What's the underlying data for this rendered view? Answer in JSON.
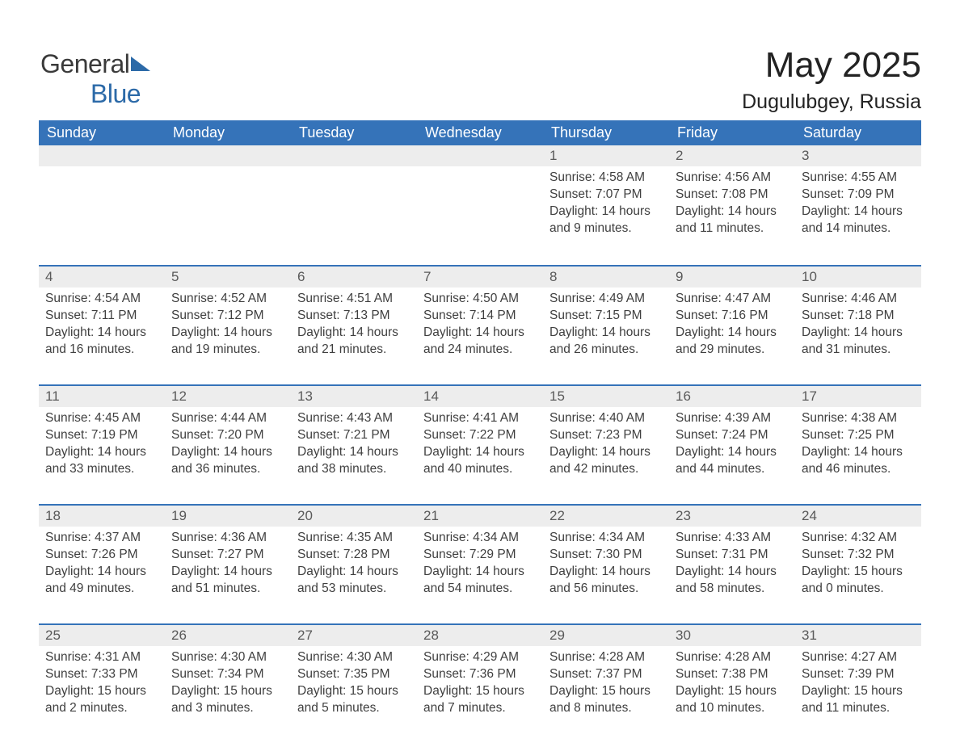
{
  "logo": {
    "text_general": "General",
    "text_blue": "Blue",
    "icon_color": "#2c6aa8"
  },
  "header": {
    "month_title": "May 2025",
    "location": "Dugulubgey, Russia"
  },
  "colors": {
    "header_bg": "#3573b9",
    "header_text": "#ffffff",
    "daynum_bg": "#ededed",
    "daynum_border": "#3573b9",
    "body_text": "#3f3f3f",
    "title_text": "#232323",
    "background": "#ffffff"
  },
  "typography": {
    "month_title_fontsize": 44,
    "location_fontsize": 25,
    "weekday_fontsize": 18,
    "daynum_fontsize": 17,
    "content_fontsize": 15.5
  },
  "weekdays": [
    "Sunday",
    "Monday",
    "Tuesday",
    "Wednesday",
    "Thursday",
    "Friday",
    "Saturday"
  ],
  "weeks": [
    [
      {
        "empty": true
      },
      {
        "empty": true
      },
      {
        "empty": true
      },
      {
        "empty": true
      },
      {
        "num": "1",
        "sunrise": "Sunrise: 4:58 AM",
        "sunset": "Sunset: 7:07 PM",
        "daylight1": "Daylight: 14 hours",
        "daylight2": "and 9 minutes."
      },
      {
        "num": "2",
        "sunrise": "Sunrise: 4:56 AM",
        "sunset": "Sunset: 7:08 PM",
        "daylight1": "Daylight: 14 hours",
        "daylight2": "and 11 minutes."
      },
      {
        "num": "3",
        "sunrise": "Sunrise: 4:55 AM",
        "sunset": "Sunset: 7:09 PM",
        "daylight1": "Daylight: 14 hours",
        "daylight2": "and 14 minutes."
      }
    ],
    [
      {
        "num": "4",
        "sunrise": "Sunrise: 4:54 AM",
        "sunset": "Sunset: 7:11 PM",
        "daylight1": "Daylight: 14 hours",
        "daylight2": "and 16 minutes."
      },
      {
        "num": "5",
        "sunrise": "Sunrise: 4:52 AM",
        "sunset": "Sunset: 7:12 PM",
        "daylight1": "Daylight: 14 hours",
        "daylight2": "and 19 minutes."
      },
      {
        "num": "6",
        "sunrise": "Sunrise: 4:51 AM",
        "sunset": "Sunset: 7:13 PM",
        "daylight1": "Daylight: 14 hours",
        "daylight2": "and 21 minutes."
      },
      {
        "num": "7",
        "sunrise": "Sunrise: 4:50 AM",
        "sunset": "Sunset: 7:14 PM",
        "daylight1": "Daylight: 14 hours",
        "daylight2": "and 24 minutes."
      },
      {
        "num": "8",
        "sunrise": "Sunrise: 4:49 AM",
        "sunset": "Sunset: 7:15 PM",
        "daylight1": "Daylight: 14 hours",
        "daylight2": "and 26 minutes."
      },
      {
        "num": "9",
        "sunrise": "Sunrise: 4:47 AM",
        "sunset": "Sunset: 7:16 PM",
        "daylight1": "Daylight: 14 hours",
        "daylight2": "and 29 minutes."
      },
      {
        "num": "10",
        "sunrise": "Sunrise: 4:46 AM",
        "sunset": "Sunset: 7:18 PM",
        "daylight1": "Daylight: 14 hours",
        "daylight2": "and 31 minutes."
      }
    ],
    [
      {
        "num": "11",
        "sunrise": "Sunrise: 4:45 AM",
        "sunset": "Sunset: 7:19 PM",
        "daylight1": "Daylight: 14 hours",
        "daylight2": "and 33 minutes."
      },
      {
        "num": "12",
        "sunrise": "Sunrise: 4:44 AM",
        "sunset": "Sunset: 7:20 PM",
        "daylight1": "Daylight: 14 hours",
        "daylight2": "and 36 minutes."
      },
      {
        "num": "13",
        "sunrise": "Sunrise: 4:43 AM",
        "sunset": "Sunset: 7:21 PM",
        "daylight1": "Daylight: 14 hours",
        "daylight2": "and 38 minutes."
      },
      {
        "num": "14",
        "sunrise": "Sunrise: 4:41 AM",
        "sunset": "Sunset: 7:22 PM",
        "daylight1": "Daylight: 14 hours",
        "daylight2": "and 40 minutes."
      },
      {
        "num": "15",
        "sunrise": "Sunrise: 4:40 AM",
        "sunset": "Sunset: 7:23 PM",
        "daylight1": "Daylight: 14 hours",
        "daylight2": "and 42 minutes."
      },
      {
        "num": "16",
        "sunrise": "Sunrise: 4:39 AM",
        "sunset": "Sunset: 7:24 PM",
        "daylight1": "Daylight: 14 hours",
        "daylight2": "and 44 minutes."
      },
      {
        "num": "17",
        "sunrise": "Sunrise: 4:38 AM",
        "sunset": "Sunset: 7:25 PM",
        "daylight1": "Daylight: 14 hours",
        "daylight2": "and 46 minutes."
      }
    ],
    [
      {
        "num": "18",
        "sunrise": "Sunrise: 4:37 AM",
        "sunset": "Sunset: 7:26 PM",
        "daylight1": "Daylight: 14 hours",
        "daylight2": "and 49 minutes."
      },
      {
        "num": "19",
        "sunrise": "Sunrise: 4:36 AM",
        "sunset": "Sunset: 7:27 PM",
        "daylight1": "Daylight: 14 hours",
        "daylight2": "and 51 minutes."
      },
      {
        "num": "20",
        "sunrise": "Sunrise: 4:35 AM",
        "sunset": "Sunset: 7:28 PM",
        "daylight1": "Daylight: 14 hours",
        "daylight2": "and 53 minutes."
      },
      {
        "num": "21",
        "sunrise": "Sunrise: 4:34 AM",
        "sunset": "Sunset: 7:29 PM",
        "daylight1": "Daylight: 14 hours",
        "daylight2": "and 54 minutes."
      },
      {
        "num": "22",
        "sunrise": "Sunrise: 4:34 AM",
        "sunset": "Sunset: 7:30 PM",
        "daylight1": "Daylight: 14 hours",
        "daylight2": "and 56 minutes."
      },
      {
        "num": "23",
        "sunrise": "Sunrise: 4:33 AM",
        "sunset": "Sunset: 7:31 PM",
        "daylight1": "Daylight: 14 hours",
        "daylight2": "and 58 minutes."
      },
      {
        "num": "24",
        "sunrise": "Sunrise: 4:32 AM",
        "sunset": "Sunset: 7:32 PM",
        "daylight1": "Daylight: 15 hours",
        "daylight2": "and 0 minutes."
      }
    ],
    [
      {
        "num": "25",
        "sunrise": "Sunrise: 4:31 AM",
        "sunset": "Sunset: 7:33 PM",
        "daylight1": "Daylight: 15 hours",
        "daylight2": "and 2 minutes."
      },
      {
        "num": "26",
        "sunrise": "Sunrise: 4:30 AM",
        "sunset": "Sunset: 7:34 PM",
        "daylight1": "Daylight: 15 hours",
        "daylight2": "and 3 minutes."
      },
      {
        "num": "27",
        "sunrise": "Sunrise: 4:30 AM",
        "sunset": "Sunset: 7:35 PM",
        "daylight1": "Daylight: 15 hours",
        "daylight2": "and 5 minutes."
      },
      {
        "num": "28",
        "sunrise": "Sunrise: 4:29 AM",
        "sunset": "Sunset: 7:36 PM",
        "daylight1": "Daylight: 15 hours",
        "daylight2": "and 7 minutes."
      },
      {
        "num": "29",
        "sunrise": "Sunrise: 4:28 AM",
        "sunset": "Sunset: 7:37 PM",
        "daylight1": "Daylight: 15 hours",
        "daylight2": "and 8 minutes."
      },
      {
        "num": "30",
        "sunrise": "Sunrise: 4:28 AM",
        "sunset": "Sunset: 7:38 PM",
        "daylight1": "Daylight: 15 hours",
        "daylight2": "and 10 minutes."
      },
      {
        "num": "31",
        "sunrise": "Sunrise: 4:27 AM",
        "sunset": "Sunset: 7:39 PM",
        "daylight1": "Daylight: 15 hours",
        "daylight2": "and 11 minutes."
      }
    ]
  ]
}
